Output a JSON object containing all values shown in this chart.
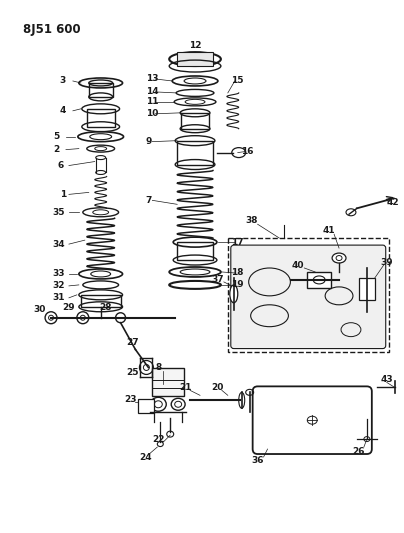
{
  "title": "8J51 600",
  "bg_color": "#ffffff",
  "line_color": "#1a1a1a",
  "fig_width": 4.04,
  "fig_height": 5.33,
  "dpi": 100
}
